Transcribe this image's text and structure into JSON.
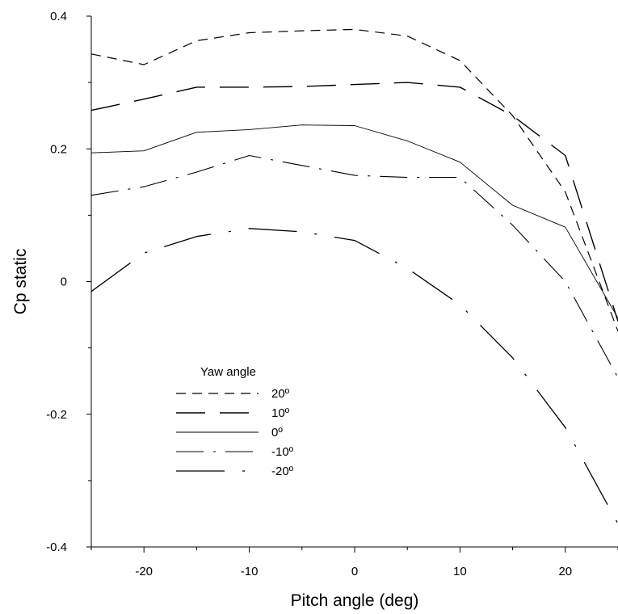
{
  "chart_data": {
    "type": "line",
    "title": "",
    "xlabel": "Pitch angle (deg)",
    "ylabel": "Cp static",
    "xlim": [
      -25,
      25
    ],
    "ylim": [
      -0.4,
      0.4
    ],
    "xticks": [
      -20,
      -10,
      0,
      10,
      20
    ],
    "xtick_labels": [
      "-20",
      "-10",
      "0",
      "10",
      "20"
    ],
    "yticks": [
      -0.4,
      -0.2,
      0,
      0.2,
      0.4
    ],
    "ytick_labels": [
      "-0.4",
      "-0.2",
      "0",
      "0.2",
      "0.4"
    ],
    "grid": false,
    "legend_title": "Yaw angle",
    "legend_position": "bottom-left",
    "line_color": "#000000",
    "series": [
      {
        "name": "20º",
        "dash": "short-dash",
        "x": [
          -25,
          -20,
          -15,
          -10,
          -5,
          0,
          5,
          10,
          15,
          20,
          25
        ],
        "values": [
          0.343,
          0.327,
          0.363,
          0.375,
          0.378,
          0.38,
          0.37,
          0.333,
          0.25,
          0.135,
          -0.075
        ]
      },
      {
        "name": "10º",
        "dash": "long-dash",
        "x": [
          -25,
          -20,
          -15,
          -10,
          -5,
          0,
          5,
          10,
          15,
          20,
          25
        ],
        "values": [
          0.258,
          0.275,
          0.293,
          0.293,
          0.294,
          0.297,
          0.3,
          0.293,
          0.25,
          0.19,
          -0.06
        ]
      },
      {
        "name": "0º",
        "dash": "solid",
        "x": [
          -25,
          -20,
          -15,
          -10,
          -5,
          0,
          5,
          10,
          15,
          20,
          25
        ],
        "values": [
          0.194,
          0.197,
          0.225,
          0.229,
          0.236,
          0.235,
          0.212,
          0.18,
          0.115,
          0.082,
          -0.055
        ]
      },
      {
        "name": "-10º",
        "dash": "dash-dot",
        "x": [
          -25,
          -20,
          -15,
          -10,
          -5,
          0,
          5,
          10,
          15,
          20,
          25
        ],
        "values": [
          0.13,
          0.143,
          0.165,
          0.19,
          0.175,
          0.16,
          0.157,
          0.157,
          0.085,
          0.0,
          -0.145
        ]
      },
      {
        "name": "-20º",
        "dash": "long-dash-dot",
        "x": [
          -25,
          -20,
          -15,
          -10,
          -5,
          0,
          5,
          10,
          15,
          20,
          25
        ],
        "values": [
          -0.015,
          0.043,
          0.068,
          0.08,
          0.075,
          0.062,
          0.02,
          -0.035,
          -0.115,
          -0.22,
          -0.365
        ]
      }
    ]
  }
}
